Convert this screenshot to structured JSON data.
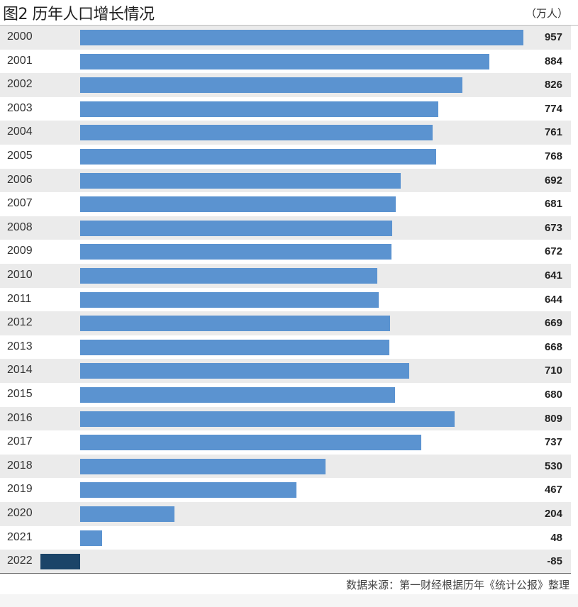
{
  "chart_data": {
    "type": "bar",
    "orientation": "horizontal",
    "title": "图2 历年人口增长情况",
    "unit": "（万人）",
    "categories": [
      "2000",
      "2001",
      "2002",
      "2003",
      "2004",
      "2005",
      "2006",
      "2007",
      "2008",
      "2009",
      "2010",
      "2011",
      "2012",
      "2013",
      "2014",
      "2015",
      "2016",
      "2017",
      "2018",
      "2019",
      "2020",
      "2021",
      "2022"
    ],
    "values": [
      957,
      884,
      826,
      774,
      761,
      768,
      692,
      681,
      673,
      672,
      641,
      644,
      669,
      668,
      710,
      680,
      809,
      737,
      530,
      467,
      204,
      48,
      -85
    ],
    "xlim": [
      -85,
      957
    ],
    "grid": false,
    "source": "数据来源：第一财经根据历年《统计公报》整理",
    "colors": {
      "positive": "#5b93d0",
      "negative": "#1b4468",
      "stripe": "#ebebeb"
    }
  }
}
